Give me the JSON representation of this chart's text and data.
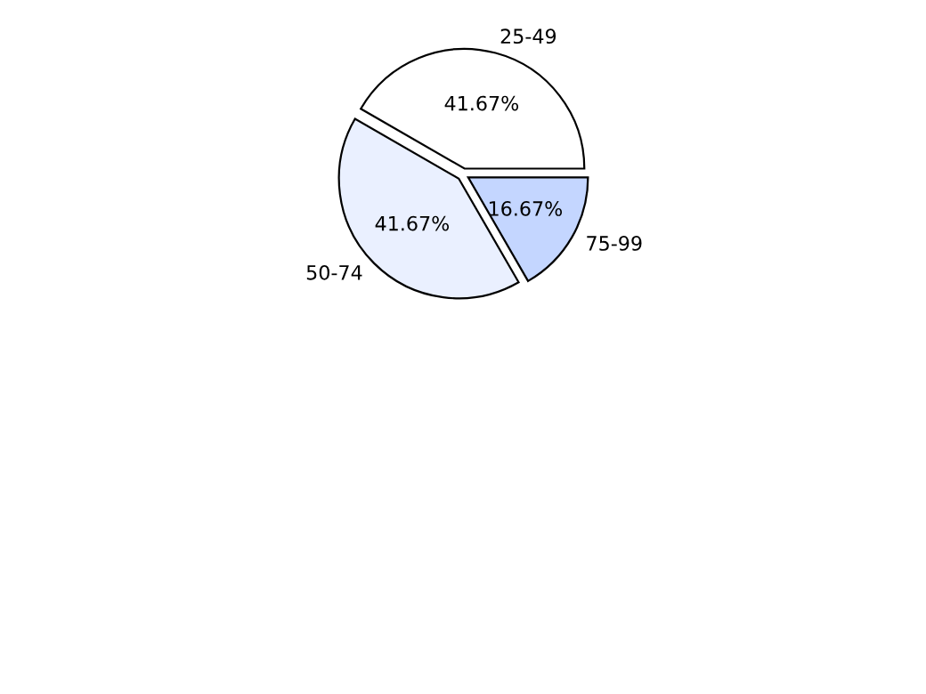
{
  "chart_data": {
    "type": "pie",
    "categories": [
      "25-49",
      "50-74",
      "75-99"
    ],
    "values": [
      41.67,
      41.67,
      16.67
    ],
    "value_labels": [
      "41.67%",
      "41.67%",
      "16.67%"
    ],
    "colors": [
      "#ffffff",
      "#eaf0ff",
      "#c4d6ff"
    ],
    "legend": false
  }
}
